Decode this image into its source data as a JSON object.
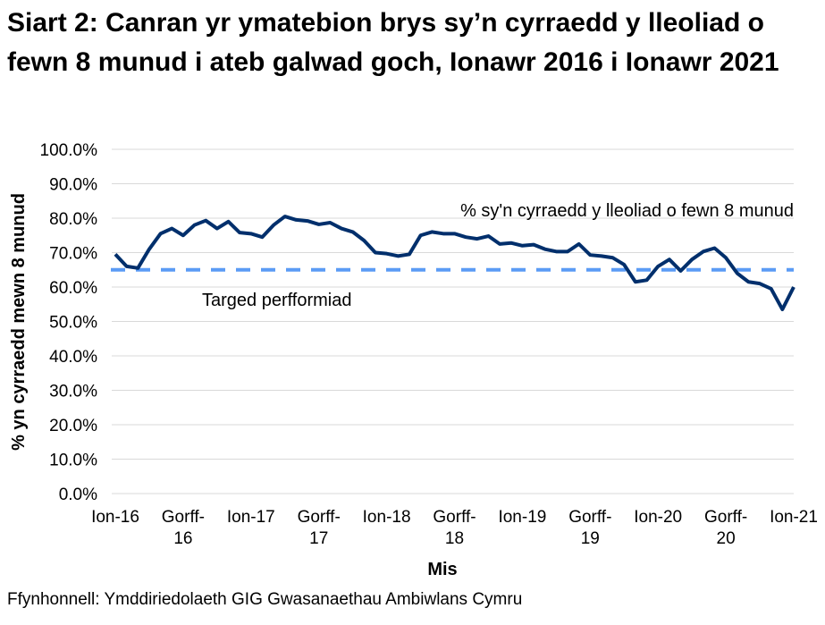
{
  "chart_data": {
    "type": "line",
    "title": "Siart 2: Canran yr ymatebion brys sy’n cyrraedd y lleoliad o fewn 8 munud i ateb galwad goch, Ionawr 2016 i Ionawr 2021",
    "xlabel": "Mis",
    "ylabel": "% yn cyrraedd mewn 8 munud",
    "ylim": [
      0,
      100
    ],
    "yticks": [
      "0.0%",
      "10.0%",
      "20.0%",
      "30.0%",
      "40.0%",
      "50.0%",
      "60.0%",
      "70.0%",
      "80.0%",
      "90.0%",
      "100.0%"
    ],
    "xticks": [
      [
        "Ion-16"
      ],
      [
        "Gorff-",
        "16"
      ],
      [
        "Ion-17"
      ],
      [
        "Gorff-",
        "17"
      ],
      [
        "Ion-18"
      ],
      [
        "Gorff-",
        "18"
      ],
      [
        "Ion-19"
      ],
      [
        "Gorff-",
        "19"
      ],
      [
        "Ion-20"
      ],
      [
        "Gorff-",
        "20"
      ],
      [
        "Ion-21"
      ]
    ],
    "x_range": [
      "2016-01",
      "2021-01"
    ],
    "grid": "horizontal",
    "series": [
      {
        "name": "% sy'n cyrraedd y lleoliad o fewn 8 munud",
        "color": "#002f6c",
        "values": [
          69.5,
          66,
          65.5,
          71,
          75.5,
          77,
          75,
          78,
          79.3,
          77,
          79,
          75.8,
          75.5,
          74.5,
          78,
          80.5,
          79.5,
          79.2,
          78.2,
          78.7,
          77,
          76,
          73.5,
          70,
          69.7,
          69,
          69.5,
          75,
          76,
          75.5,
          75.5,
          74.5,
          74,
          74.8,
          72.5,
          72.8,
          72,
          72.3,
          71,
          70.3,
          70.3,
          72.5,
          69.3,
          69,
          68.5,
          66.5,
          61.5,
          62,
          66,
          68,
          64.7,
          68,
          70.3,
          71.3,
          68.5,
          64,
          61.5,
          61,
          59.5,
          53.5,
          60
        ]
      },
      {
        "name": "Targed perfformiad",
        "color": "#5b9bf5",
        "dashed": true,
        "value": 65
      }
    ]
  },
  "source": "Ffynhonnell: Ymddiriedolaeth GIG Gwasanaethau Ambiwlans Cymru"
}
